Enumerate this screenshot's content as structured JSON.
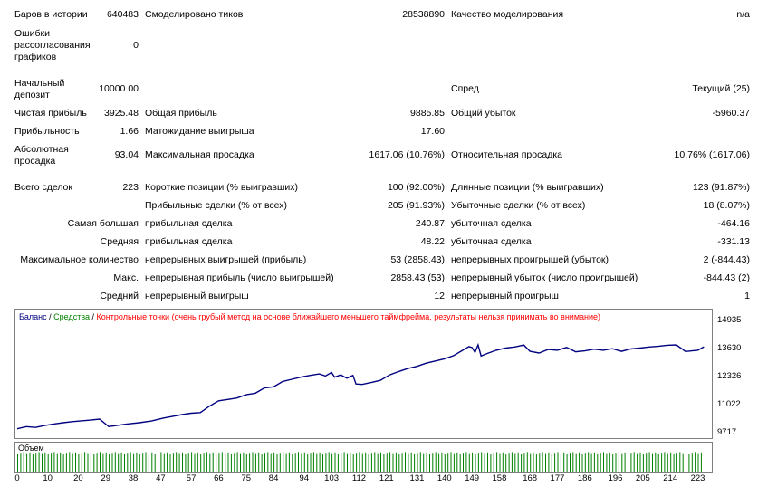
{
  "stats": {
    "bars_label": "Баров в истории",
    "bars_value": "640483",
    "ticks_label": "Смоделировано тиков",
    "ticks_value": "28538890",
    "quality_label": "Качество моделирования",
    "quality_value": "n/a",
    "mismatch_label": "Ошибки рассогласования графиков",
    "mismatch_value": "0",
    "deposit_label": "Начальный депозит",
    "deposit_value": "10000.00",
    "spread_label": "Спред",
    "spread_value": "Текущий (25)",
    "net_profit_label": "Чистая прибыль",
    "net_profit_value": "3925.48",
    "gross_profit_label": "Общая прибыль",
    "gross_profit_value": "9885.85",
    "gross_loss_label": "Общий убыток",
    "gross_loss_value": "-5960.37",
    "profit_factor_label": "Прибыльность",
    "profit_factor_value": "1.66",
    "expected_payoff_label": "Матожидание выигрыша",
    "expected_payoff_value": "17.60",
    "abs_dd_label": "Абсолютная просадка",
    "abs_dd_value": "93.04",
    "max_dd_label": "Максимальная просадка",
    "max_dd_value": "1617.06 (10.76%)",
    "rel_dd_label": "Относительная просадка",
    "rel_dd_value": "10.76% (1617.06)",
    "total_trades_label": "Всего сделок",
    "total_trades_value": "223",
    "short_label": "Короткие позиции (% выигравших)",
    "short_value": "100 (92.00%)",
    "long_label": "Длинные позиции (% выигравших)",
    "long_value": "123 (91.87%)",
    "profit_trades_label": "Прибыльные сделки (% от всех)",
    "profit_trades_value": "205 (91.93%)",
    "loss_trades_label": "Убыточные сделки (% от всех)",
    "loss_trades_value": "18 (8.07%)",
    "largest_label": "Самая большая",
    "largest_profit_label": "прибыльная сделка",
    "largest_profit_value": "240.87",
    "largest_loss_label": "убыточная сделка",
    "largest_loss_value": "-464.16",
    "average_label": "Средняя",
    "average_profit_label": "прибыльная сделка",
    "average_profit_value": "48.22",
    "average_loss_label": "убыточная сделка",
    "average_loss_value": "-331.13",
    "max_count_label": "Максимальное количество",
    "max_cons_wins_label": "непрерывных выигрышей (прибыль)",
    "max_cons_wins_value": "53 (2858.43)",
    "max_cons_losses_label": "непрерывных проигрышей (убыток)",
    "max_cons_losses_value": "2 (-844.43)",
    "max_label": "Макс.",
    "max_cons_profit_label": "непрерывная прибыль (число выигрышей)",
    "max_cons_profit_value": "2858.43 (53)",
    "max_cons_loss_label": "непрерывный убыток (число проигрышей)",
    "max_cons_loss_value": "-844.43 (2)",
    "avg_label": "Средний",
    "avg_cons_wins_label": "непрерывный выигрыш",
    "avg_cons_wins_value": "12",
    "avg_cons_losses_label": "непрерывный проигрыш",
    "avg_cons_losses_value": "1"
  },
  "legend": {
    "balance": "Баланс",
    "sep1": " / ",
    "equity": "Средства",
    "sep2": " / ",
    "points": "Контрольные точки (очень грубый метод на основе ближайшего меньшего таймфрейма, результаты нельзя принимать во внимание)"
  },
  "volume_label": "Объем",
  "colors": {
    "balance": "#000080",
    "equity": "#008000",
    "points": "#ff0000",
    "volume": "#008000"
  },
  "chart_data": {
    "type": "line",
    "ylim": [
      9717,
      14935
    ],
    "yticks": [
      "14935",
      "13630",
      "12326",
      "11022",
      "9717"
    ],
    "xlim": [
      0,
      227
    ],
    "xticks": [
      "0",
      "10",
      "20",
      "29",
      "38",
      "47",
      "57",
      "66",
      "75",
      "84",
      "94",
      "103",
      "112",
      "121",
      "131",
      "140",
      "149",
      "158",
      "168",
      "177",
      "186",
      "196",
      "205",
      "214",
      "223"
    ],
    "series": [
      {
        "name": "Баланс",
        "x": [
          0,
          3,
          6,
          9,
          12,
          15,
          18,
          21,
          24,
          27,
          30,
          33,
          36,
          40,
          44,
          48,
          51,
          54,
          57,
          60,
          63,
          66,
          69,
          72,
          75,
          78,
          81,
          84,
          87,
          90,
          93,
          96,
          99,
          101,
          103,
          104,
          106,
          108,
          110,
          111,
          113,
          116,
          119,
          122,
          125,
          128,
          131,
          134,
          137,
          140,
          143,
          146,
          148,
          149,
          150,
          151,
          152,
          154,
          157,
          160,
          163,
          166,
          168,
          171,
          174,
          177,
          180,
          183,
          186,
          189,
          192,
          195,
          198,
          201,
          204,
          207,
          210,
          213,
          216,
          219,
          221,
          223,
          225
        ],
        "y": [
          9900,
          10000,
          9960,
          10050,
          10120,
          10180,
          10230,
          10270,
          10300,
          10350,
          10000,
          10060,
          10120,
          10180,
          10260,
          10400,
          10480,
          10560,
          10620,
          10650,
          10950,
          11200,
          11260,
          11330,
          11480,
          11550,
          11800,
          11850,
          12100,
          12200,
          12300,
          12380,
          12450,
          12350,
          12520,
          12300,
          12400,
          12250,
          12380,
          11980,
          11960,
          12050,
          12150,
          12400,
          12560,
          12700,
          12800,
          12950,
          13050,
          13150,
          13300,
          13550,
          13720,
          13680,
          13450,
          13800,
          13280,
          13400,
          13550,
          13650,
          13700,
          13790,
          13500,
          13420,
          13590,
          13550,
          13680,
          13480,
          13520,
          13600,
          13550,
          13620,
          13500,
          13610,
          13650,
          13700,
          13730,
          13780,
          13800,
          13490,
          13520,
          13550,
          13710
        ]
      }
    ]
  }
}
